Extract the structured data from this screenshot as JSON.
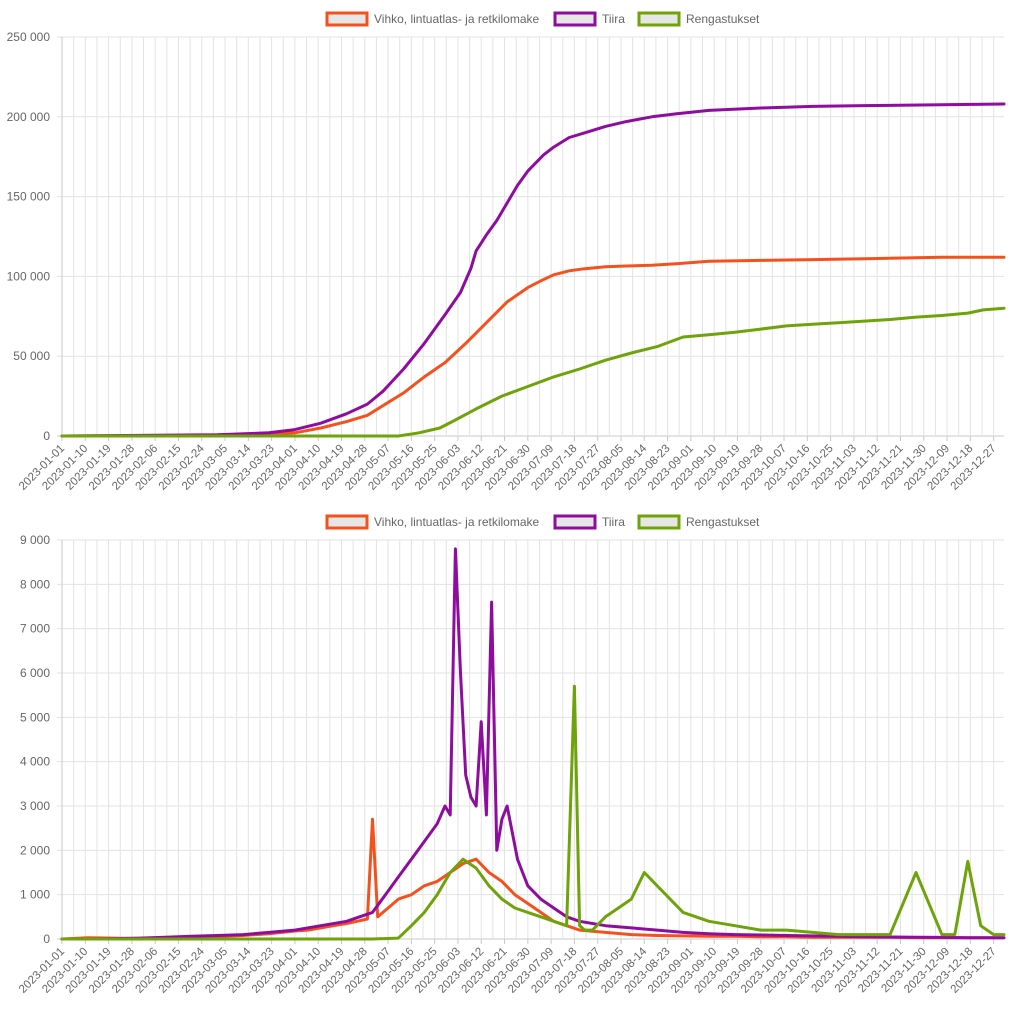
{
  "legend": [
    {
      "label": "Vihko, lintuatlas- ja retkilomake",
      "color": "#f4511e"
    },
    {
      "label": "Tiira",
      "color": "#8e0d9e"
    },
    {
      "label": "Rengastukset",
      "color": "#6fa30a"
    }
  ],
  "x_tick_labels": [
    "2023-01-01",
    "2023-01-10",
    "2023-01-19",
    "2023-01-28",
    "2023-02-06",
    "2023-02-15",
    "2023-02-24",
    "2023-03-05",
    "2023-03-14",
    "2023-03-23",
    "2023-04-01",
    "2023-04-10",
    "2023-04-19",
    "2023-04-28",
    "2023-05-07",
    "2023-05-16",
    "2023-05-25",
    "2023-06-03",
    "2023-06-12",
    "2023-06-21",
    "2023-06-30",
    "2023-07-09",
    "2023-07-18",
    "2023-07-27",
    "2023-08-05",
    "2023-08-14",
    "2023-08-23",
    "2023-09-01",
    "2023-09-10",
    "2023-09-19",
    "2023-09-28",
    "2023-10-07",
    "2023-10-16",
    "2023-10-25",
    "2023-11-03",
    "2023-11-12",
    "2023-11-21",
    "2023-11-30",
    "2023-12-09",
    "2023-12-18",
    "2023-12-27"
  ],
  "chart_data": [
    {
      "type": "line",
      "title": "",
      "ylim": [
        0,
        250000
      ],
      "y_ticks": [
        0,
        50000,
        100000,
        150000,
        200000,
        250000
      ],
      "y_tick_labels": [
        "0",
        "50 000",
        "100 000",
        "150 000",
        "200 000",
        "250 000"
      ],
      "x_range": [
        0,
        364
      ],
      "legend_position": "top-center",
      "grid": true,
      "series": [
        {
          "name": "Vihko, lintuatlas- ja retkilomake",
          "color": "#f4511e",
          "x": [
            0,
            60,
            90,
            100,
            110,
            118,
            124,
            132,
            140,
            148,
            156,
            164,
            172,
            180,
            186,
            190,
            196,
            202,
            210,
            218,
            228,
            238,
            250,
            270,
            290,
            310,
            340,
            364
          ],
          "y": [
            0,
            500,
            2000,
            5000,
            9000,
            13000,
            19000,
            27000,
            37000,
            46000,
            58000,
            71000,
            84000,
            93000,
            98000,
            101000,
            103500,
            104800,
            106000,
            106500,
            107000,
            108000,
            109500,
            110000,
            110500,
            111000,
            112000,
            112000
          ]
        },
        {
          "name": "Tiira",
          "color": "#8e0d9e",
          "x": [
            0,
            60,
            80,
            90,
            100,
            110,
            118,
            124,
            132,
            140,
            148,
            154,
            158,
            160,
            164,
            168,
            172,
            176,
            180,
            186,
            190,
            196,
            202,
            210,
            218,
            228,
            238,
            250,
            270,
            290,
            310,
            340,
            364
          ],
          "y": [
            0,
            800,
            2000,
            4000,
            8000,
            14000,
            20000,
            28000,
            42000,
            58000,
            76000,
            90000,
            105000,
            116000,
            126000,
            135000,
            146000,
            157000,
            166000,
            176000,
            181000,
            187000,
            190000,
            194000,
            197000,
            200000,
            202000,
            204000,
            205500,
            206500,
            207000,
            207500,
            208000
          ]
        },
        {
          "name": "Rengastukset",
          "color": "#6fa30a",
          "x": [
            0,
            130,
            138,
            146,
            152,
            160,
            170,
            180,
            190,
            200,
            210,
            220,
            230,
            240,
            250,
            260,
            270,
            280,
            290,
            300,
            310,
            320,
            330,
            340,
            350,
            356,
            364
          ],
          "y": [
            0,
            0,
            2000,
            5000,
            10000,
            17000,
            25000,
            31000,
            37000,
            42000,
            47500,
            52000,
            56000,
            62000,
            63500,
            65000,
            67000,
            69000,
            70000,
            71000,
            72000,
            73000,
            74500,
            75500,
            77000,
            79000,
            80000
          ]
        }
      ]
    },
    {
      "type": "line",
      "title": "",
      "ylim": [
        0,
        9000
      ],
      "y_ticks": [
        0,
        1000,
        2000,
        3000,
        4000,
        5000,
        6000,
        7000,
        8000,
        9000
      ],
      "y_tick_labels": [
        "0",
        "1 000",
        "2 000",
        "3 000",
        "4 000",
        "5 000",
        "6 000",
        "7 000",
        "8 000",
        "9 000"
      ],
      "x_range": [
        0,
        364
      ],
      "legend_position": "top-center",
      "grid": true,
      "series": [
        {
          "name": "Vihko, lintuatlas- ja retkilomake",
          "color": "#f4511e",
          "x": [
            0,
            10,
            20,
            30,
            40,
            50,
            60,
            70,
            80,
            90,
            95,
            100,
            105,
            110,
            114,
            118,
            120,
            122,
            124,
            126,
            130,
            135,
            140,
            145,
            150,
            155,
            160,
            165,
            170,
            175,
            180,
            185,
            190,
            195,
            200,
            210,
            220,
            230,
            240,
            250,
            260,
            270,
            280,
            290,
            300,
            310,
            320,
            330,
            340,
            350,
            364
          ],
          "y": [
            0,
            30,
            20,
            10,
            20,
            40,
            60,
            80,
            120,
            180,
            200,
            250,
            300,
            350,
            400,
            450,
            2700,
            500,
            600,
            700,
            900,
            1000,
            1200,
            1300,
            1500,
            1700,
            1800,
            1500,
            1300,
            1000,
            800,
            600,
            400,
            300,
            200,
            150,
            100,
            80,
            70,
            60,
            60,
            50,
            50,
            40,
            40,
            40,
            40,
            30,
            30,
            30,
            30
          ]
        },
        {
          "name": "Tiira",
          "color": "#8e0d9e",
          "x": [
            0,
            10,
            20,
            30,
            40,
            50,
            60,
            70,
            80,
            90,
            100,
            110,
            115,
            120,
            125,
            130,
            135,
            140,
            145,
            148,
            150,
            152,
            154,
            156,
            158,
            160,
            162,
            164,
            166,
            168,
            170,
            172,
            174,
            176,
            178,
            180,
            185,
            190,
            195,
            200,
            210,
            220,
            230,
            240,
            250,
            260,
            270,
            280,
            290,
            300,
            310,
            320,
            330,
            340,
            350,
            364
          ],
          "y": [
            0,
            0,
            10,
            20,
            40,
            60,
            80,
            100,
            150,
            200,
            300,
            400,
            500,
            600,
            1000,
            1400,
            1800,
            2200,
            2600,
            3000,
            2800,
            8800,
            6000,
            3700,
            3200,
            3000,
            4900,
            2800,
            7600,
            2000,
            2700,
            3000,
            2400,
            1800,
            1500,
            1200,
            900,
            700,
            500,
            400,
            300,
            250,
            200,
            150,
            120,
            100,
            90,
            80,
            70,
            60,
            50,
            45,
            40,
            35,
            30,
            30
          ]
        },
        {
          "name": "Rengastukset",
          "color": "#6fa30a",
          "x": [
            0,
            120,
            130,
            135,
            140,
            145,
            150,
            155,
            160,
            165,
            170,
            175,
            180,
            185,
            190,
            195,
            198,
            200,
            202,
            205,
            210,
            215,
            220,
            225,
            230,
            240,
            250,
            260,
            270,
            280,
            290,
            300,
            310,
            320,
            330,
            340,
            345,
            350,
            355,
            360,
            364
          ],
          "y": [
            0,
            0,
            20,
            300,
            600,
            1000,
            1500,
            1800,
            1600,
            1200,
            900,
            700,
            600,
            500,
            400,
            300,
            5700,
            300,
            200,
            200,
            500,
            700,
            900,
            1500,
            1200,
            600,
            400,
            300,
            200,
            200,
            150,
            100,
            100,
            100,
            1500,
            100,
            100,
            1750,
            300,
            100,
            100
          ]
        }
      ]
    }
  ]
}
